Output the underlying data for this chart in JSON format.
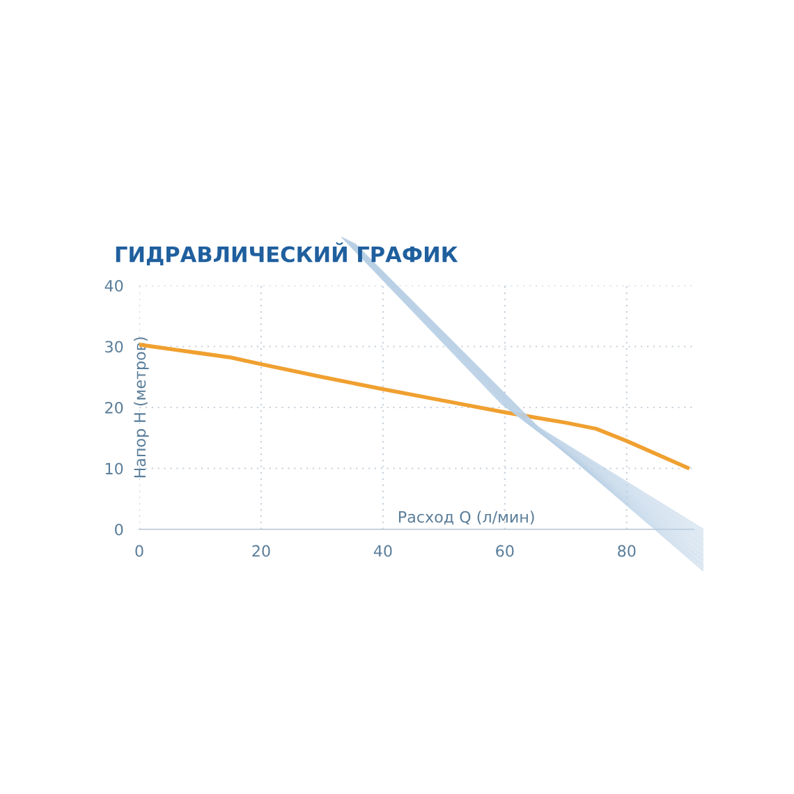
{
  "chart_data": {
    "type": "line",
    "title": "ГИДРАВЛИЧЕСКИЙ ГРАФИК",
    "xlabel": "Расход Q (л/мин)",
    "ylabel": "Напор H (метров)",
    "x": [
      0,
      10,
      15,
      20,
      30,
      40,
      50,
      60,
      70,
      75,
      80,
      90
    ],
    "series": [
      {
        "color": "#f0a030",
        "values": [
          30.3,
          28.9,
          28.2,
          27.1,
          25.0,
          23.0,
          21.1,
          19.2,
          17.5,
          16.5,
          14.5,
          10.1
        ]
      }
    ],
    "xlim": [
      0,
      91
    ],
    "ylim": [
      0,
      40
    ],
    "xticks": [
      0,
      20,
      40,
      60,
      80
    ],
    "yticks": [
      0,
      10,
      20,
      30,
      40
    ],
    "grid": true,
    "marker": "none",
    "line_style": "solid"
  }
}
